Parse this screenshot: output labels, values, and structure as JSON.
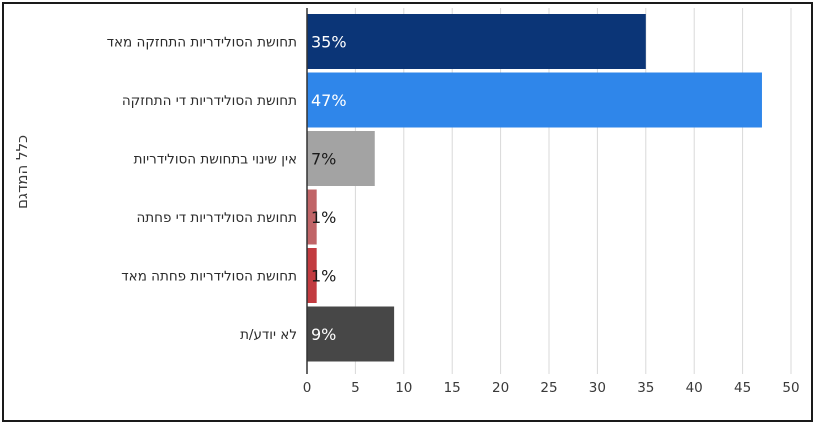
{
  "chart_data": {
    "type": "bar",
    "orientation": "horizontal",
    "group_label": "כלל המדגם",
    "categories": [
      "תחושת הסולידריות התחזקה מאד",
      "תחושת הסולידריות די התחזקה",
      "אין שינוי בתחושת הסולידריות",
      "תחושת הסולידריות די פחתה",
      "תחושת הסולידריות פחתה מאד",
      "לא יודע/ת"
    ],
    "values": [
      35,
      47,
      7,
      1,
      1,
      9
    ],
    "value_labels": [
      "35%",
      "47%",
      "7%",
      "1%",
      "1%",
      "9%"
    ],
    "bar_colors": [
      "#0b3577",
      "#2f86ea",
      "#a3a3a3",
      "#c06467",
      "#c23b40",
      "#474747"
    ],
    "label_colors": [
      "#ffffff",
      "#ffffff",
      "#1a1a1a",
      "#1a1a1a",
      "#1a1a1a",
      "#ffffff"
    ],
    "xlim": [
      0,
      50
    ],
    "xticks": [
      0,
      5,
      10,
      15,
      20,
      25,
      30,
      35,
      40,
      45,
      50
    ],
    "grid": true
  }
}
